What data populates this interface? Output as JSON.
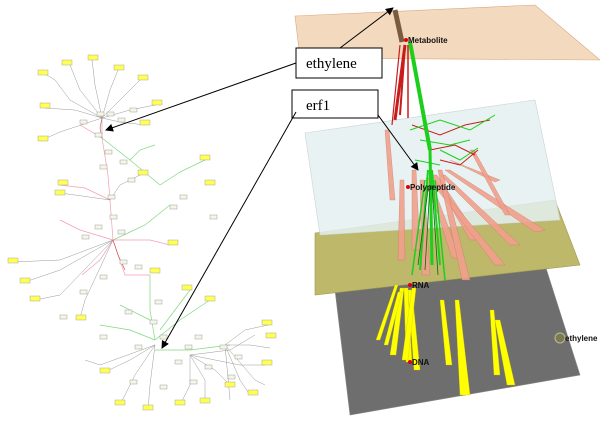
{
  "callouts": {
    "ethylene": "ethylene",
    "erf1": "erf1"
  },
  "planes": {
    "metabolite": "Metabolite",
    "polypeptide": "Polypeptide",
    "rna": "RNA",
    "dna": "DNA"
  },
  "outside_node_label": "ethylene",
  "colors": {
    "metabolite_plane": "#f3d9bd",
    "polypeptide_plane": "#e4f0f0",
    "rna_plane": "#bdb86a",
    "dna_plane": "#6e6e6e",
    "red_edge": "#c81c1c",
    "green_edge": "#1ccf1c",
    "salmon_edge": "#f0a08c",
    "yellow_edge": "#ffff00",
    "node_yellow": "#ffff55"
  }
}
